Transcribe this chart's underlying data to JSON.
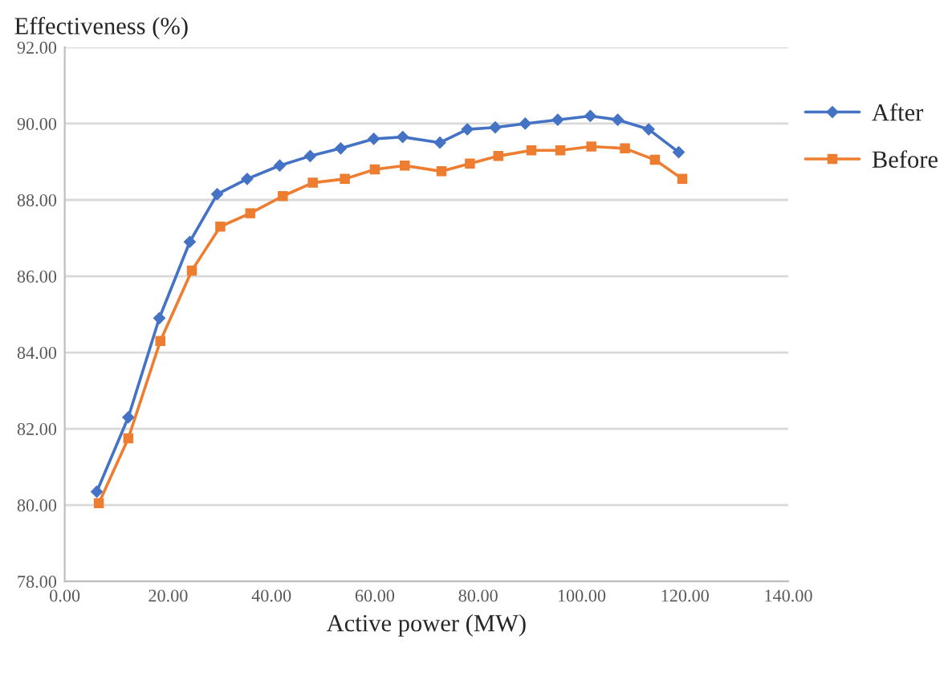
{
  "chart_data": {
    "type": "line",
    "ylabel": "Effectiveness (%)",
    "xlabel": "Active power (MW)",
    "xlim": [
      0,
      140
    ],
    "xticks": [
      {
        "value": 0,
        "label": "0.00"
      },
      {
        "value": 20,
        "label": "20.00"
      },
      {
        "value": 40,
        "label": "40.00"
      },
      {
        "value": 60,
        "label": "60.00"
      },
      {
        "value": 80,
        "label": "80.00"
      },
      {
        "value": 100,
        "label": "100.00"
      },
      {
        "value": 120,
        "label": "120.00"
      },
      {
        "value": 140,
        "label": "140.00"
      }
    ],
    "ylim": [
      78,
      92
    ],
    "yticks": [
      {
        "value": 78,
        "label": "78.00"
      },
      {
        "value": 80,
        "label": "80.00"
      },
      {
        "value": 82,
        "label": "82.00"
      },
      {
        "value": 84,
        "label": "84.00"
      },
      {
        "value": 86,
        "label": "86.00"
      },
      {
        "value": 88,
        "label": "88.00"
      },
      {
        "value": 90,
        "label": "90.00"
      },
      {
        "value": 92,
        "label": "92.00"
      }
    ],
    "grid": "y",
    "legend": "right",
    "line_style": "solid",
    "series": [
      {
        "name": "After",
        "color": "#4472c4",
        "marker": "diamond",
        "x": [
          6.2,
          12.3,
          18.3,
          24.2,
          29.5,
          35.3,
          41.6,
          47.5,
          53.4,
          59.8,
          65.4,
          72.6,
          77.9,
          83.3,
          89.1,
          95.4,
          101.7,
          107.0,
          113.0,
          118.8
        ],
        "values": [
          80.35,
          82.3,
          84.9,
          86.9,
          88.15,
          88.55,
          88.9,
          89.15,
          89.35,
          89.6,
          89.65,
          89.5,
          89.85,
          89.9,
          90.0,
          90.1,
          90.2,
          90.1,
          89.85,
          89.25
        ]
      },
      {
        "name": "Before",
        "color": "#ed7d31",
        "marker": "square",
        "x": [
          6.6,
          12.3,
          18.5,
          24.6,
          30.1,
          35.9,
          42.2,
          48.0,
          54.2,
          60.0,
          65.8,
          72.9,
          78.4,
          83.9,
          90.3,
          95.9,
          101.9,
          108.4,
          114.2,
          119.5
        ],
        "values": [
          80.05,
          81.75,
          84.3,
          86.15,
          87.3,
          87.65,
          88.1,
          88.45,
          88.55,
          88.8,
          88.9,
          88.75,
          88.95,
          89.15,
          89.3,
          89.3,
          89.4,
          89.35,
          89.05,
          88.55
        ]
      }
    ]
  }
}
